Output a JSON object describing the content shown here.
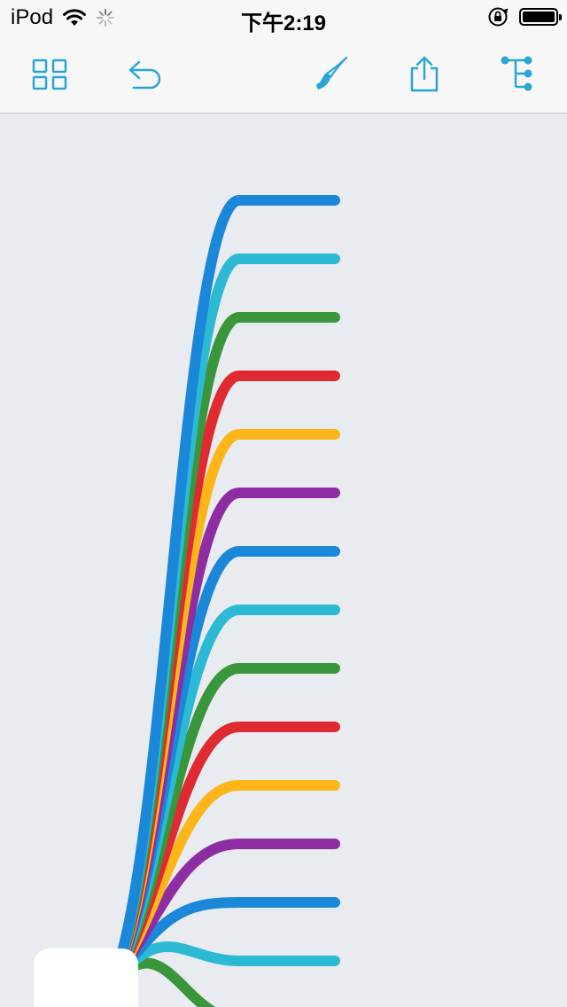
{
  "status_bar": {
    "device": "iPod",
    "time": "下午2:19",
    "battery_level": 1.0
  },
  "toolbar": {
    "buttons": [
      {
        "name": "grid-view-button",
        "icon": "grid-icon"
      },
      {
        "name": "undo-button",
        "icon": "undo-icon"
      },
      {
        "name": "style-button",
        "icon": "brush-icon"
      },
      {
        "name": "share-button",
        "icon": "share-icon"
      },
      {
        "name": "outline-button",
        "icon": "tree-outline-icon"
      }
    ],
    "accent_color": "#2aa6d6"
  },
  "mindmap": {
    "branch_colors": [
      "#1a87d8",
      "#2bb9d4",
      "#3a963a",
      "#e02a31",
      "#fdb61a",
      "#8e2ca4"
    ],
    "branch_count": 15
  }
}
